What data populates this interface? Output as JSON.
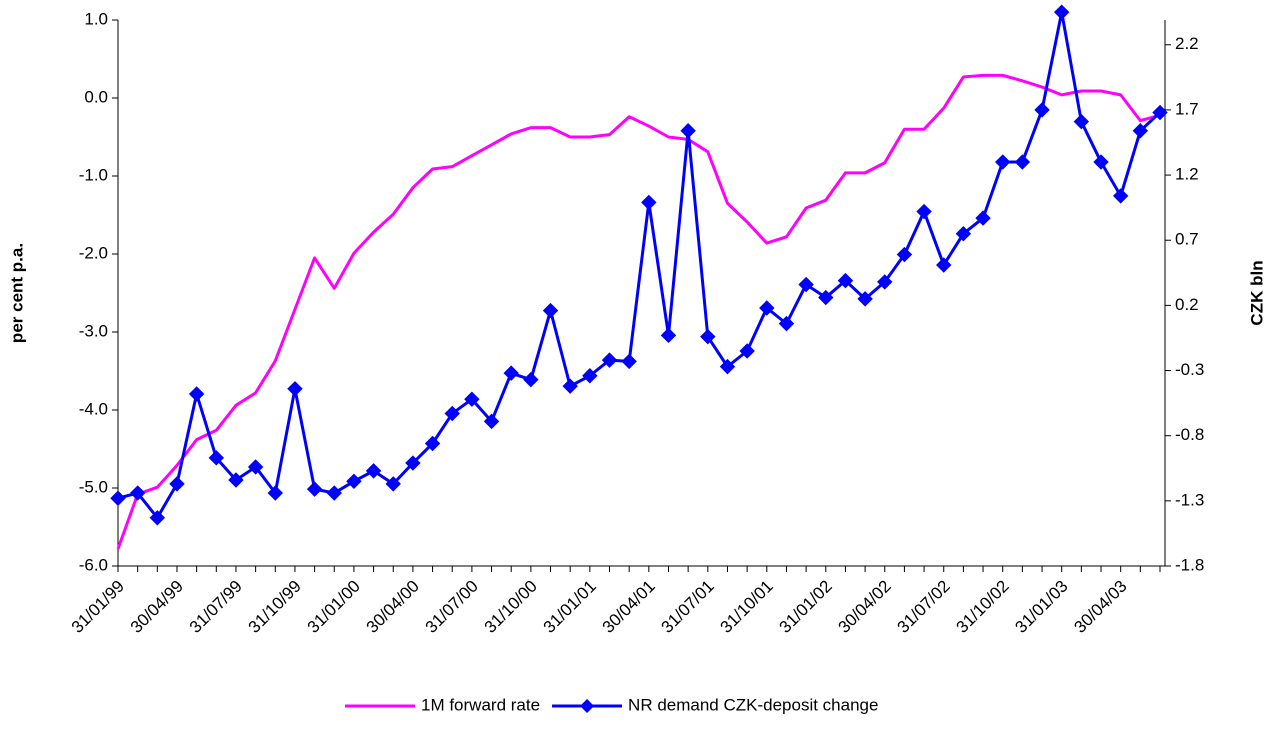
{
  "chart_data": {
    "type": "line",
    "y_label": "per cent p.a.",
    "y2_label": "CZK bln",
    "categories": [
      "31/01/99",
      null,
      null,
      "30/04/99",
      null,
      null,
      "31/07/99",
      null,
      null,
      "31/10/99",
      null,
      null,
      "31/01/00",
      null,
      null,
      "30/04/00",
      null,
      null,
      "31/07/00",
      null,
      null,
      "31/10/00",
      null,
      null,
      "31/01/01",
      null,
      null,
      "30/04/01",
      null,
      null,
      "31/07/01",
      null,
      null,
      "31/10/01",
      null,
      null,
      "31/01/02",
      null,
      null,
      "30/04/02",
      null,
      null,
      "31/07/02",
      null,
      null,
      "31/10/02",
      null,
      null,
      "31/01/03",
      null,
      null,
      "30/04/03",
      null,
      null
    ],
    "series": [
      {
        "name": "1M forward rate",
        "color": "#ff00ff",
        "axis": "y",
        "marker": false,
        "values": [
          -5.78,
          -5.08,
          -4.99,
          -4.71,
          -4.38,
          -4.26,
          -3.94,
          -3.78,
          -3.37,
          -2.71,
          -2.05,
          -2.44,
          -1.99,
          -1.72,
          -1.49,
          -1.15,
          -0.91,
          -0.88,
          -0.74,
          -0.6,
          -0.46,
          -0.38,
          -0.38,
          -0.5,
          -0.5,
          -0.47,
          -0.24,
          -0.36,
          -0.5,
          -0.53,
          -0.69,
          -1.35,
          -1.59,
          -1.86,
          -1.78,
          -1.41,
          -1.31,
          -0.96,
          -0.96,
          -0.83,
          -0.4,
          -0.4,
          -0.13,
          0.27,
          0.29,
          0.29,
          0.22,
          0.14,
          0.04,
          0.09,
          0.09,
          0.04,
          -0.29,
          -0.22
        ]
      },
      {
        "name": "NR demand CZK-deposit change",
        "color": "#0000ff",
        "axis": "y2",
        "marker": true,
        "values": [
          -1.28,
          -1.24,
          -1.43,
          -1.17,
          -0.48,
          -0.97,
          -1.14,
          -1.04,
          -1.24,
          -0.44,
          -1.21,
          -1.24,
          -1.15,
          -1.07,
          -1.17,
          -1.01,
          -0.86,
          -0.63,
          -0.52,
          -0.69,
          -0.32,
          -0.37,
          0.16,
          -0.42,
          -0.34,
          -0.22,
          -0.23,
          0.99,
          -0.03,
          1.54,
          -0.04,
          -0.27,
          -0.15,
          0.18,
          0.06,
          0.36,
          0.26,
          0.39,
          0.25,
          0.38,
          0.59,
          0.92,
          0.51,
          0.75,
          0.87,
          1.3,
          1.3,
          1.7,
          2.45,
          1.61,
          1.3,
          1.04,
          1.54,
          1.68
        ]
      }
    ],
    "ylim": [
      -6,
      1
    ],
    "yticks": [
      {
        "value": -6,
        "label": "-6.0"
      },
      {
        "value": -5,
        "label": "-5.0"
      },
      {
        "value": -4,
        "label": "-4.0"
      },
      {
        "value": -3,
        "label": "-3.0"
      },
      {
        "value": -2,
        "label": "-2.0"
      },
      {
        "value": -1,
        "label": "-1.0"
      },
      {
        "value": 0,
        "label": "0.0"
      },
      {
        "value": 1,
        "label": "1.0"
      }
    ],
    "y2lim": [
      -1.8,
      2.39
    ],
    "y2ticks": [
      -1.8,
      -1.3,
      -0.8,
      -0.3,
      0.2,
      0.7,
      1.2,
      1.7,
      2.2
    ],
    "grid": false,
    "legend": "bottom"
  }
}
